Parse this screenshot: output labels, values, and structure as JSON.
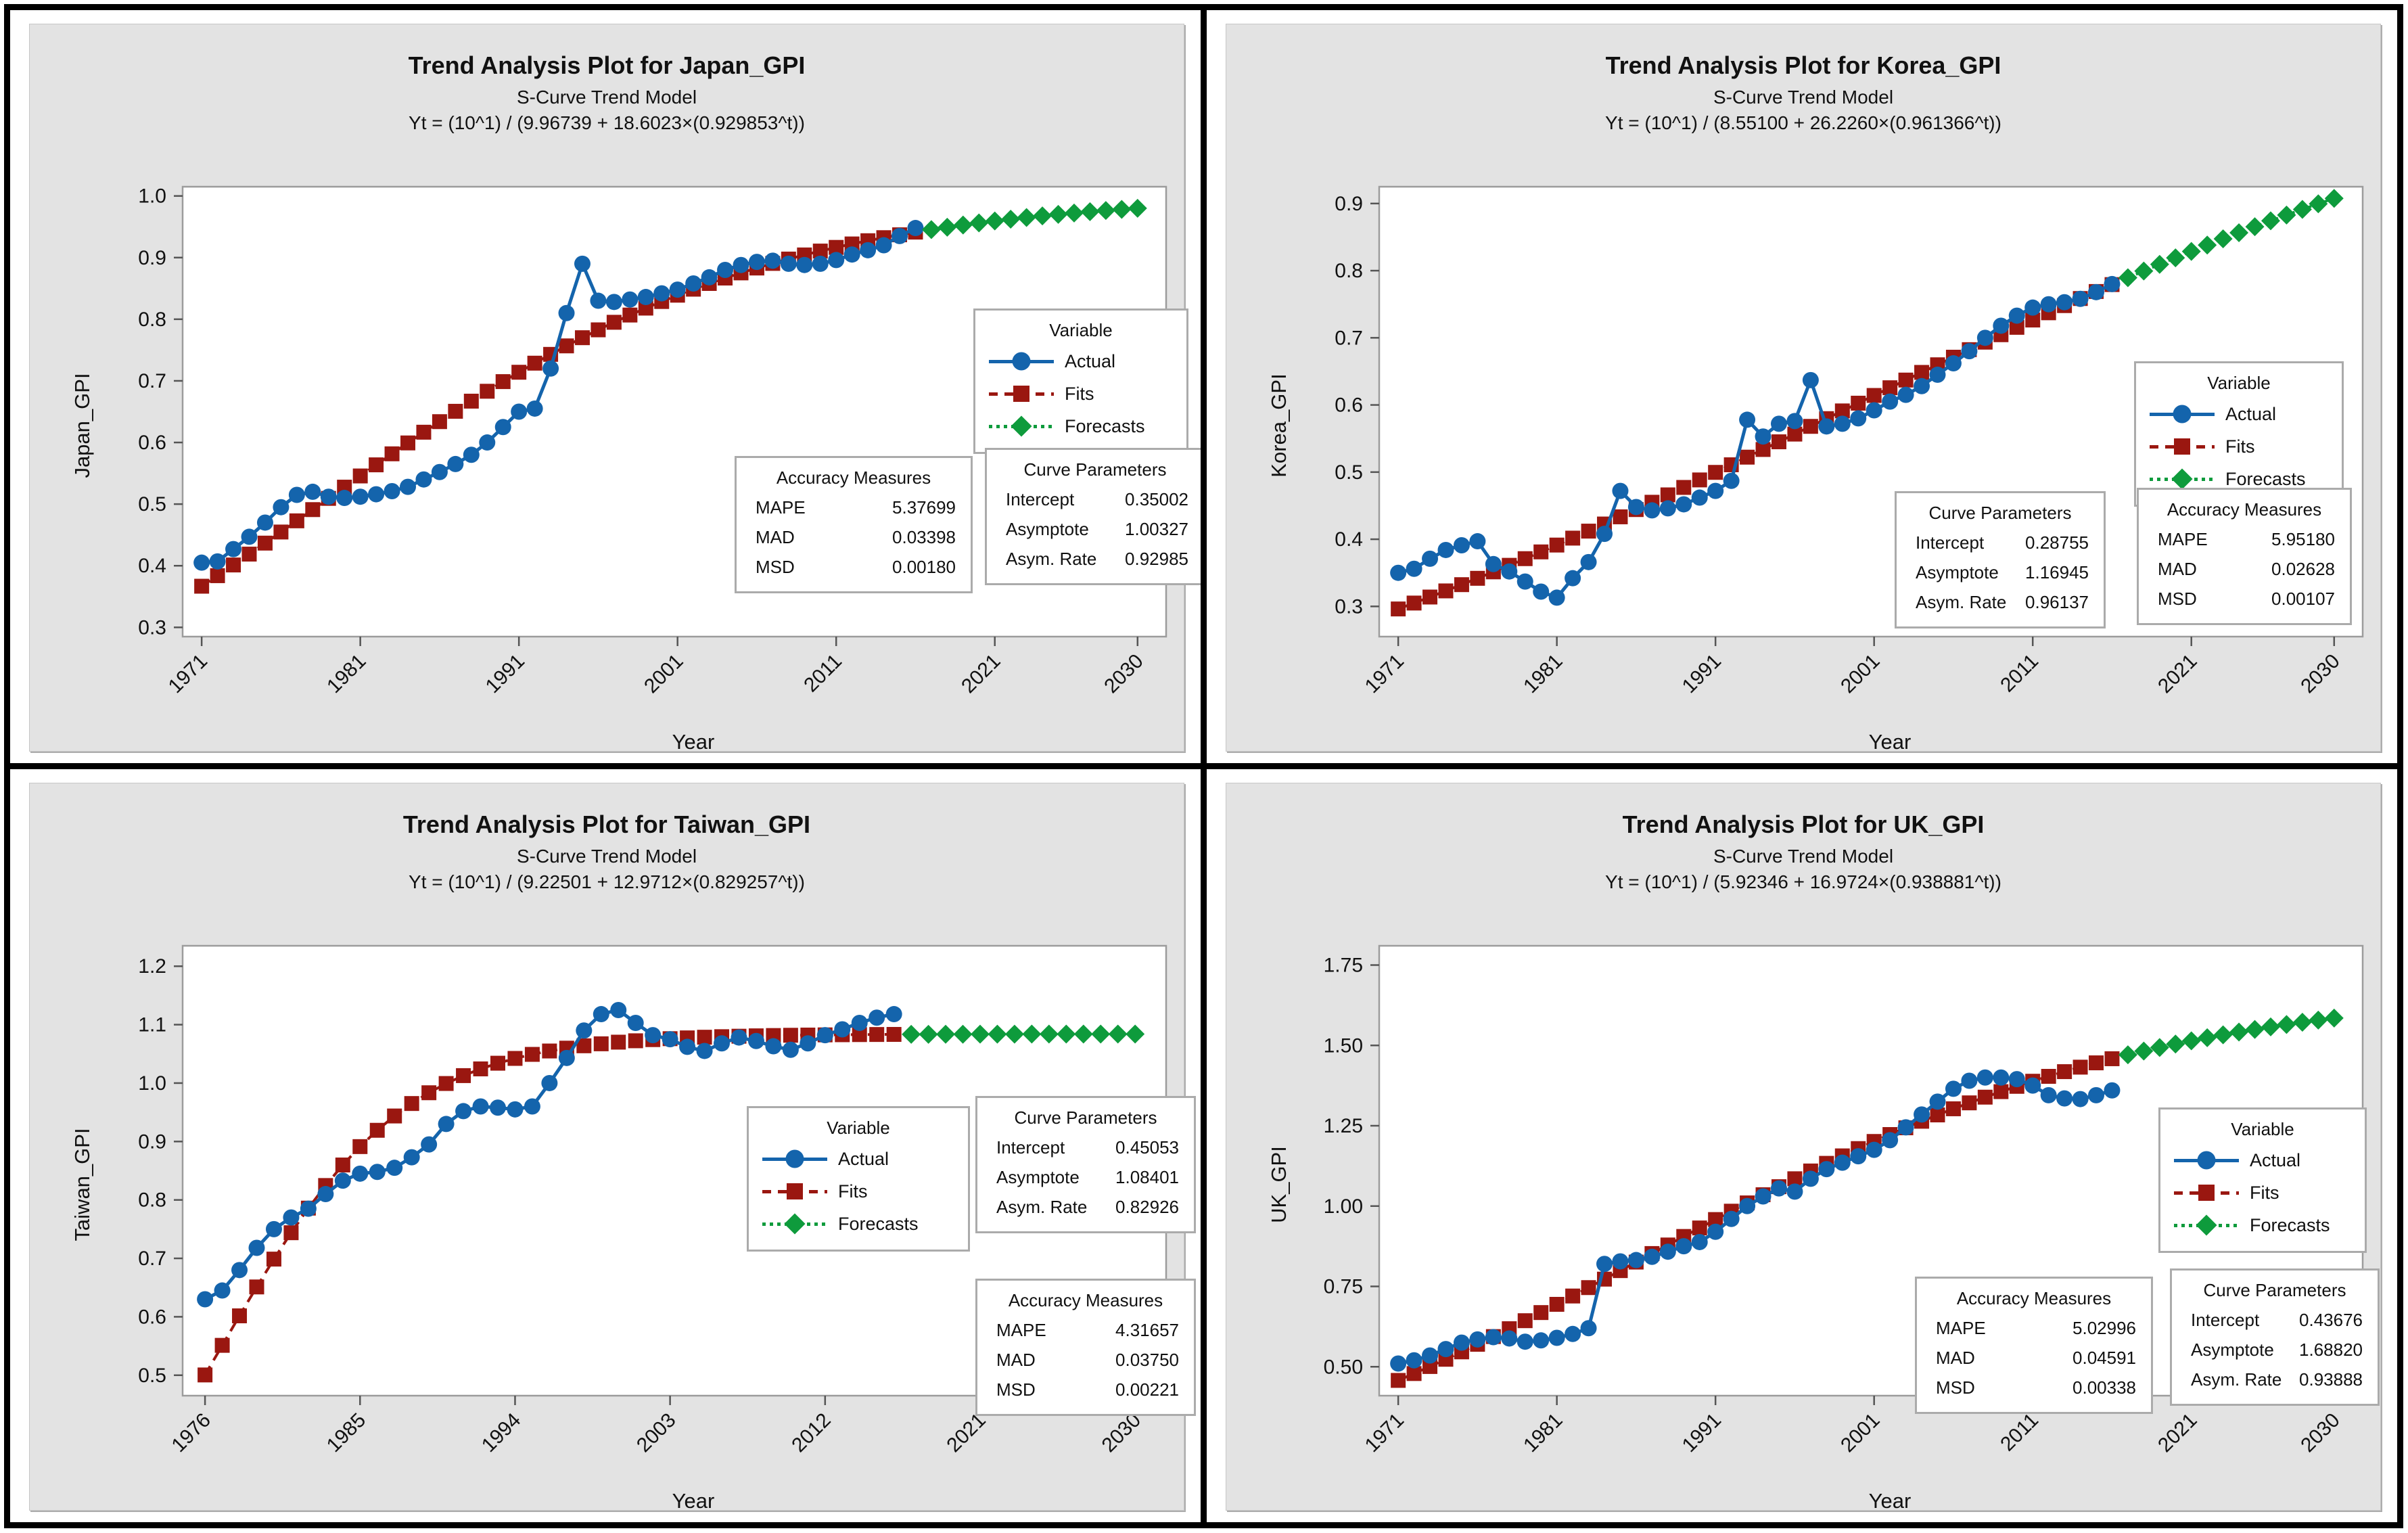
{
  "colors": {
    "actual": "#1464AC",
    "fits": "#9A1710",
    "forecasts": "#0E9B3C",
    "panel_bg": "#E3E3E3",
    "plot_border": "#9C9C9C",
    "box_border": "#ABABAB",
    "tick": "#555555",
    "text": "#111111"
  },
  "panels": [
    {
      "title": "Trend Analysis Plot for Japan_GPI",
      "subtitle": "S-Curve Trend Model",
      "equation": "Yt = (10^1) / (9.96739 + 18.6023×(0.929853^t))",
      "ylabel": "Japan_GPI",
      "xlabel": "Year",
      "legend": {
        "title": "Variable",
        "items": [
          "Actual",
          "Fits",
          "Forecasts"
        ]
      },
      "accuracy": {
        "title": "Accuracy Measures",
        "rows": [
          [
            "MAPE",
            "5.37699"
          ],
          [
            "MAD",
            "0.03398"
          ],
          [
            "MSD",
            "0.00180"
          ]
        ]
      },
      "curve": {
        "title": "Curve Parameters",
        "rows": [
          [
            "Intercept",
            "0.35002"
          ],
          [
            "Asymptote",
            "1.00327"
          ],
          [
            "Asym. Rate",
            "0.92985"
          ]
        ]
      }
    },
    {
      "title": "Trend Analysis Plot for Korea_GPI",
      "subtitle": "S-Curve Trend Model",
      "equation": "Yt = (10^1) / (8.55100 + 26.2260×(0.961366^t))",
      "ylabel": "Korea_GPI",
      "xlabel": "Year",
      "legend": {
        "title": "Variable",
        "items": [
          "Actual",
          "Fits",
          "Forecasts"
        ]
      },
      "accuracy": {
        "title": "Accuracy Measures",
        "rows": [
          [
            "MAPE",
            "5.95180"
          ],
          [
            "MAD",
            "0.02628"
          ],
          [
            "MSD",
            "0.00107"
          ]
        ]
      },
      "curve": {
        "title": "Curve Parameters",
        "rows": [
          [
            "Intercept",
            "0.28755"
          ],
          [
            "Asymptote",
            "1.16945"
          ],
          [
            "Asym. Rate",
            "0.96137"
          ]
        ]
      }
    },
    {
      "title": "Trend Analysis Plot for Taiwan_GPI",
      "subtitle": "S-Curve Trend Model",
      "equation": "Yt = (10^1) / (9.22501 + 12.9712×(0.829257^t))",
      "ylabel": "Taiwan_GPI",
      "xlabel": "Year",
      "legend": {
        "title": "Variable",
        "items": [
          "Actual",
          "Fits",
          "Forecasts"
        ]
      },
      "accuracy": {
        "title": "Accuracy Measures",
        "rows": [
          [
            "MAPE",
            "4.31657"
          ],
          [
            "MAD",
            "0.03750"
          ],
          [
            "MSD",
            "0.00221"
          ]
        ]
      },
      "curve": {
        "title": "Curve Parameters",
        "rows": [
          [
            "Intercept",
            "0.45053"
          ],
          [
            "Asymptote",
            "1.08401"
          ],
          [
            "Asym. Rate",
            "0.82926"
          ]
        ]
      }
    },
    {
      "title": "Trend Analysis Plot for UK_GPI",
      "subtitle": "S-Curve Trend Model",
      "equation": "Yt = (10^1) / (5.92346 + 16.9724×(0.938881^t))",
      "ylabel": "UK_GPI",
      "xlabel": "Year",
      "legend": {
        "title": "Variable",
        "items": [
          "Actual",
          "Fits",
          "Forecasts"
        ]
      },
      "accuracy": {
        "title": "Accuracy Measures",
        "rows": [
          [
            "MAPE",
            "5.02996"
          ],
          [
            "MAD",
            "0.04591"
          ],
          [
            "MSD",
            "0.00338"
          ]
        ]
      },
      "curve": {
        "title": "Curve Parameters",
        "rows": [
          [
            "Intercept",
            "0.43676"
          ],
          [
            "Asymptote",
            "1.68820"
          ],
          [
            "Asym. Rate",
            "0.93888"
          ]
        ]
      }
    }
  ],
  "chart_data": [
    {
      "type": "line",
      "title": "Trend Analysis Plot for Japan_GPI",
      "xlabel": "Year",
      "ylabel": "Japan_GPI",
      "series": [
        {
          "name": "Actual"
        },
        {
          "name": "Fits"
        },
        {
          "name": "Forecasts"
        }
      ],
      "x_start": 1971,
      "actual": [
        0.405,
        0.407,
        0.427,
        0.447,
        0.47,
        0.495,
        0.515,
        0.52,
        0.512,
        0.51,
        0.512,
        0.516,
        0.521,
        0.528,
        0.54,
        0.552,
        0.565,
        0.58,
        0.6,
        0.625,
        0.65,
        0.655,
        0.72,
        0.81,
        0.89,
        0.83,
        0.828,
        0.832,
        0.836,
        0.842,
        0.848,
        0.858,
        0.868,
        0.88,
        0.888,
        0.893,
        0.895,
        0.89,
        0.888,
        0.89,
        0.896,
        0.905,
        0.912,
        0.92,
        0.935,
        0.948
      ],
      "model": {
        "formula": "Yt = (10^1) / (9.96739 + 18.6023×(0.929853^t))",
        "scale": 10,
        "a": 9.96739,
        "b": 18.6023,
        "r": 0.929853
      },
      "fit_years": [
        1971,
        2016
      ],
      "forecast_years": [
        2017,
        2030
      ],
      "x_ticks": [
        1971,
        1981,
        1991,
        2001,
        2011,
        2021,
        2030
      ],
      "y_tick_values": [
        1.0,
        0.9,
        0.8,
        0.7,
        0.6,
        0.5,
        0.4,
        0.3
      ],
      "y_tick_labels": [
        "1.0",
        "0.9",
        "0.8",
        "0.7",
        "0.6",
        "0.5",
        "0.4",
        "0.3"
      ],
      "xlim": [
        1969.8,
        2031.8
      ],
      "ylim": [
        0.285,
        1.015
      ],
      "grid": false,
      "legend_position": "inside-right"
    },
    {
      "type": "line",
      "title": "Trend Analysis Plot for Korea_GPI",
      "xlabel": "Year",
      "ylabel": "Korea_GPI",
      "series": [
        {
          "name": "Actual"
        },
        {
          "name": "Fits"
        },
        {
          "name": "Forecasts"
        }
      ],
      "x_start": 1971,
      "actual": [
        0.35,
        0.356,
        0.371,
        0.384,
        0.391,
        0.397,
        0.363,
        0.352,
        0.337,
        0.322,
        0.313,
        0.342,
        0.366,
        0.408,
        0.472,
        0.448,
        0.443,
        0.446,
        0.452,
        0.462,
        0.472,
        0.487,
        0.578,
        0.553,
        0.572,
        0.576,
        0.637,
        0.568,
        0.572,
        0.58,
        0.592,
        0.605,
        0.615,
        0.628,
        0.645,
        0.662,
        0.68,
        0.7,
        0.718,
        0.733,
        0.745,
        0.75,
        0.753,
        0.758,
        0.768,
        0.78
      ],
      "model": {
        "formula": "Yt = (10^1) / (8.55100 + 26.2260×(0.961366^t))",
        "scale": 10,
        "a": 8.551,
        "b": 26.226,
        "r": 0.961366
      },
      "fit_years": [
        1971,
        2016
      ],
      "forecast_years": [
        2017,
        2030
      ],
      "x_ticks": [
        1971,
        1981,
        1991,
        2001,
        2011,
        2021,
        2030
      ],
      "y_tick_values": [
        0.9,
        0.8,
        0.7,
        0.6,
        0.5,
        0.4,
        0.3
      ],
      "y_tick_labels": [
        "0.9",
        "0.8",
        "0.7",
        "0.6",
        "0.5",
        "0.4",
        "0.3"
      ],
      "xlim": [
        1969.8,
        2031.8
      ],
      "ylim": [
        0.255,
        0.925
      ],
      "grid": false,
      "legend_position": "inside-right"
    },
    {
      "type": "line",
      "title": "Trend Analysis Plot for Taiwan_GPI",
      "xlabel": "Year",
      "ylabel": "Taiwan_GPI",
      "series": [
        {
          "name": "Actual"
        },
        {
          "name": "Fits"
        },
        {
          "name": "Forecasts"
        }
      ],
      "x_start": 1976,
      "actual": [
        0.63,
        0.645,
        0.68,
        0.718,
        0.75,
        0.77,
        0.785,
        0.81,
        0.833,
        0.845,
        0.848,
        0.855,
        0.873,
        0.895,
        0.93,
        0.952,
        0.96,
        0.958,
        0.955,
        0.96,
        1.0,
        1.043,
        1.09,
        1.118,
        1.125,
        1.103,
        1.082,
        1.075,
        1.062,
        1.055,
        1.068,
        1.078,
        1.072,
        1.063,
        1.057,
        1.068,
        1.082,
        1.092,
        1.103,
        1.112,
        1.118
      ],
      "model": {
        "formula": "Yt = (10^1) / (9.22501 + 12.9712×(0.829257^t))",
        "scale": 10,
        "a": 9.22501,
        "b": 12.9712,
        "r": 0.829257
      },
      "fit_years": [
        1976,
        2016
      ],
      "forecast_years": [
        2017,
        2030
      ],
      "x_ticks": [
        1976,
        1985,
        1994,
        2003,
        2012,
        2021,
        2030
      ],
      "y_tick_values": [
        1.2,
        1.1,
        1.0,
        0.9,
        0.8,
        0.7,
        0.6,
        0.5
      ],
      "y_tick_labels": [
        "1.2",
        "1.1",
        "1.0",
        "0.9",
        "0.8",
        "0.7",
        "0.6",
        "0.5"
      ],
      "xlim": [
        1974.7,
        2031.8
      ],
      "ylim": [
        0.465,
        1.235
      ],
      "grid": false,
      "legend_position": "inside-middle"
    },
    {
      "type": "line",
      "title": "Trend Analysis Plot for UK_GPI",
      "xlabel": "Year",
      "ylabel": "UK_GPI",
      "series": [
        {
          "name": "Actual"
        },
        {
          "name": "Fits"
        },
        {
          "name": "Forecasts"
        }
      ],
      "x_start": 1971,
      "actual": [
        0.51,
        0.52,
        0.535,
        0.555,
        0.575,
        0.585,
        0.592,
        0.588,
        0.578,
        0.582,
        0.59,
        0.602,
        0.62,
        0.82,
        0.828,
        0.832,
        0.842,
        0.858,
        0.875,
        0.888,
        0.92,
        0.96,
        1.0,
        1.03,
        1.055,
        1.045,
        1.085,
        1.115,
        1.135,
        1.155,
        1.175,
        1.205,
        1.245,
        1.285,
        1.325,
        1.365,
        1.39,
        1.4,
        1.4,
        1.395,
        1.375,
        1.345,
        1.335,
        1.333,
        1.345,
        1.36
      ],
      "model": {
        "formula": "Yt = (10^1) / (5.92346 + 16.9724×(0.938881^t))",
        "scale": 10,
        "a": 5.92346,
        "b": 16.9724,
        "r": 0.938881
      },
      "fit_years": [
        1971,
        2016
      ],
      "forecast_years": [
        2017,
        2030
      ],
      "x_ticks": [
        1971,
        1981,
        1991,
        2001,
        2011,
        2021,
        2030
      ],
      "y_tick_values": [
        1.75,
        1.5,
        1.25,
        1.0,
        0.75,
        0.5
      ],
      "y_tick_labels": [
        "1.75",
        "1.50",
        "1.25",
        "1.00",
        "0.75",
        "0.50"
      ],
      "xlim": [
        1969.8,
        2031.8
      ],
      "ylim": [
        0.41,
        1.81
      ],
      "grid": false,
      "legend_position": "inside-right"
    }
  ]
}
